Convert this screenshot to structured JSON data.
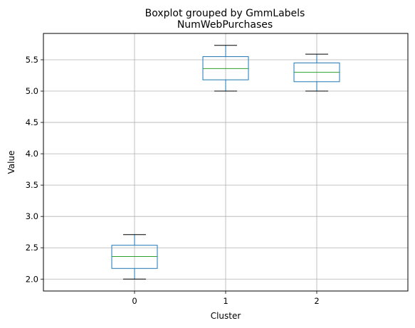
{
  "chart_data": {
    "type": "box",
    "suptitle": "Boxplot grouped by GmmLabels",
    "title": "NumWebPurchases",
    "xlabel": "Cluster",
    "ylabel": "Value",
    "categories": [
      "0",
      "1",
      "2"
    ],
    "ylim": [
      1.81,
      5.92
    ],
    "yticks": [
      2.0,
      2.5,
      3.0,
      3.5,
      4.0,
      4.5,
      5.0,
      5.5
    ],
    "ytick_labels": [
      "2.0",
      "2.5",
      "3.0",
      "3.5",
      "4.0",
      "4.5",
      "5.0",
      "5.5"
    ],
    "grid": true,
    "boxes": [
      {
        "category": "0",
        "whisker_low": 2.0,
        "q1": 2.17,
        "median": 2.36,
        "q3": 2.54,
        "whisker_high": 2.71
      },
      {
        "category": "1",
        "whisker_low": 5.0,
        "q1": 5.18,
        "median": 5.36,
        "q3": 5.55,
        "whisker_high": 5.73
      },
      {
        "category": "2",
        "whisker_low": 5.0,
        "q1": 5.15,
        "median": 5.3,
        "q3": 5.45,
        "whisker_high": 5.59
      }
    ],
    "colors": {
      "box": "#1f77b4",
      "median": "#2ca02c",
      "whisker": "#000000",
      "grid": "#b0b0b0"
    }
  }
}
